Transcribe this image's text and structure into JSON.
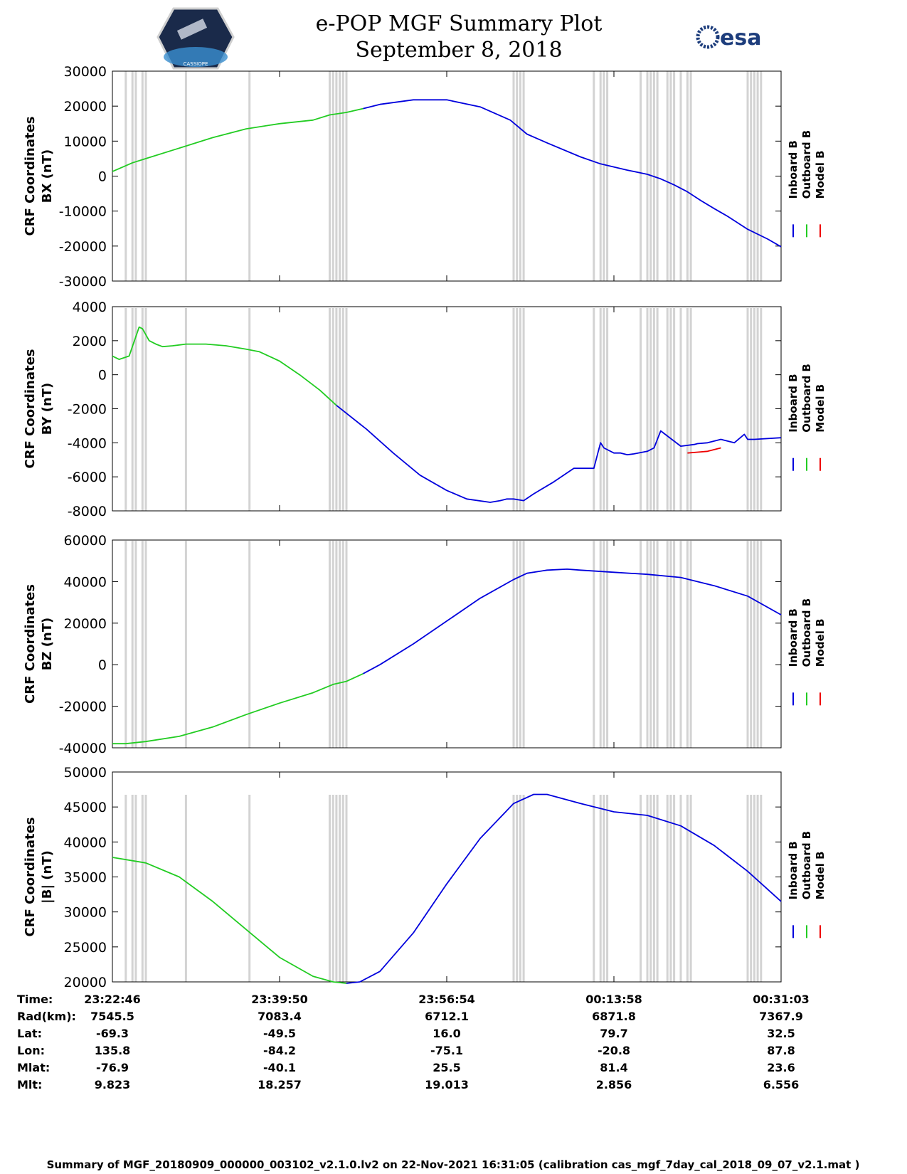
{
  "header": {
    "title": "e-POP MGF Summary Plot",
    "date": "September 8, 2018",
    "logo_left_text": "CASSIOPE",
    "logo_right_text": "esa"
  },
  "legend": {
    "labels": [
      "Inboard B",
      "Outboard B",
      "Model B"
    ],
    "colors": [
      "#0000dd",
      "#22cc22",
      "#ee0000"
    ]
  },
  "colors": {
    "inboard": "#0000dd",
    "outboard": "#22cc22",
    "model": "#ee0000",
    "gap": "#d3d3d3"
  },
  "chart_data": [
    {
      "type": "line",
      "ylabel": [
        "CRF Coordinates",
        "BX (nT)"
      ],
      "ylim": [
        -30000,
        30000
      ],
      "yticks": [
        "30000",
        "20000",
        "10000",
        "0",
        "-10000",
        "-20000",
        "-30000"
      ],
      "series": [
        {
          "name": "Outboard B",
          "color": "#22cc22",
          "x": [
            0.0,
            0.03,
            0.05,
            0.1,
            0.15,
            0.2,
            0.25,
            0.3,
            0.325,
            0.35,
            0.375
          ],
          "values": [
            1300,
            3800,
            5000,
            8000,
            11000,
            13500,
            15000,
            16000,
            17500,
            18200,
            19300
          ]
        },
        {
          "name": "Inboard B",
          "color": "#0000dd",
          "x": [
            0.375,
            0.4,
            0.45,
            0.5,
            0.55,
            0.595,
            0.62,
            0.65,
            0.7,
            0.73,
            0.77,
            0.8,
            0.82,
            0.84,
            0.86,
            0.88,
            0.9,
            0.92,
            0.95,
            0.98,
            1.0
          ],
          "values": [
            19300,
            20500,
            21800,
            21800,
            19800,
            16000,
            12000,
            9500,
            5500,
            3500,
            1700,
            500,
            -800,
            -2500,
            -4500,
            -7000,
            -9300,
            -11500,
            -15200,
            -18000,
            -20200
          ]
        }
      ],
      "gap_positions": [
        0.02,
        0.03,
        0.035,
        0.045,
        0.05,
        0.11,
        0.205,
        0.325,
        0.33,
        0.335,
        0.34,
        0.345,
        0.35,
        0.6,
        0.605,
        0.61,
        0.615,
        0.72,
        0.73,
        0.735,
        0.74,
        0.79,
        0.8,
        0.805,
        0.81,
        0.815,
        0.83,
        0.835,
        0.84,
        0.85,
        0.86,
        0.865,
        0.95,
        0.955,
        0.96,
        0.965,
        0.97
      ]
    },
    {
      "type": "line",
      "ylabel": [
        "CRF Coordinates",
        "BY (nT)"
      ],
      "ylim": [
        -8000,
        4000
      ],
      "yticks": [
        "4000",
        "2000",
        "0",
        "-2000",
        "-4000",
        "-6000",
        "-8000"
      ],
      "series": [
        {
          "name": "Model B",
          "color": "#ee0000",
          "x": [
            0.86,
            0.875,
            0.89,
            0.9,
            0.91
          ],
          "values": [
            -4600,
            -4550,
            -4500,
            -4400,
            -4300
          ]
        },
        {
          "name": "Outboard B",
          "color": "#22cc22",
          "x": [
            0.0,
            0.01,
            0.025,
            0.04,
            0.045,
            0.055,
            0.065,
            0.075,
            0.09,
            0.11,
            0.14,
            0.17,
            0.2,
            0.22,
            0.25,
            0.28,
            0.31,
            0.335
          ],
          "values": [
            1100,
            900,
            1100,
            2800,
            2700,
            2000,
            1800,
            1650,
            1700,
            1800,
            1800,
            1700,
            1500,
            1350,
            800,
            0,
            -900,
            -1800
          ]
        },
        {
          "name": "Inboard B",
          "color": "#0000dd",
          "x": [
            0.335,
            0.38,
            0.42,
            0.46,
            0.5,
            0.53,
            0.565,
            0.58,
            0.59,
            0.6,
            0.615,
            0.63,
            0.66,
            0.69,
            0.72,
            0.73,
            0.735,
            0.75,
            0.76,
            0.77,
            0.78,
            0.8,
            0.81,
            0.82,
            0.85,
            0.87,
            0.875,
            0.89,
            0.91,
            0.93,
            0.945,
            0.95,
            0.96,
            1.0
          ],
          "values": [
            -1800,
            -3200,
            -4600,
            -5900,
            -6800,
            -7300,
            -7500,
            -7400,
            -7300,
            -7300,
            -7400,
            -7000,
            -6300,
            -5500,
            -5500,
            -4000,
            -4300,
            -4600,
            -4600,
            -4700,
            -4650,
            -4500,
            -4300,
            -3300,
            -4200,
            -4100,
            -4050,
            -4000,
            -3800,
            -4000,
            -3500,
            -3800,
            -3800,
            -3700
          ]
        }
      ],
      "gap_positions": [
        0.02,
        0.03,
        0.035,
        0.045,
        0.05,
        0.11,
        0.205,
        0.325,
        0.33,
        0.335,
        0.34,
        0.345,
        0.35,
        0.6,
        0.605,
        0.61,
        0.615,
        0.72,
        0.73,
        0.735,
        0.74,
        0.79,
        0.8,
        0.805,
        0.81,
        0.815,
        0.83,
        0.835,
        0.84,
        0.85,
        0.86,
        0.865,
        0.95,
        0.955,
        0.96,
        0.965,
        0.97
      ]
    },
    {
      "type": "line",
      "ylabel": [
        "CRF Coordinates",
        "BZ (nT)"
      ],
      "ylim": [
        -40000,
        60000
      ],
      "yticks": [
        "60000",
        "40000",
        "20000",
        "0",
        "-20000",
        "-40000"
      ],
      "series": [
        {
          "name": "Outboard B",
          "color": "#22cc22",
          "x": [
            0.0,
            0.02,
            0.05,
            0.1,
            0.15,
            0.2,
            0.25,
            0.3,
            0.33,
            0.35,
            0.375
          ],
          "values": [
            -38000,
            -38000,
            -37000,
            -34500,
            -30000,
            -24000,
            -18500,
            -13500,
            -9500,
            -8000,
            -4300
          ]
        },
        {
          "name": "Inboard B",
          "color": "#0000dd",
          "x": [
            0.375,
            0.4,
            0.45,
            0.5,
            0.55,
            0.6,
            0.62,
            0.65,
            0.68,
            0.7,
            0.75,
            0.8,
            0.85,
            0.9,
            0.95,
            1.0
          ],
          "values": [
            -4300,
            0,
            10000,
            21000,
            32000,
            41000,
            44000,
            45500,
            46000,
            45500,
            44500,
            43500,
            42000,
            38000,
            33000,
            24000
          ]
        }
      ],
      "gap_positions": [
        0.02,
        0.03,
        0.035,
        0.045,
        0.05,
        0.11,
        0.205,
        0.325,
        0.33,
        0.335,
        0.34,
        0.345,
        0.35,
        0.6,
        0.605,
        0.61,
        0.615,
        0.72,
        0.73,
        0.735,
        0.74,
        0.79,
        0.8,
        0.805,
        0.81,
        0.815,
        0.83,
        0.835,
        0.84,
        0.85,
        0.86,
        0.865,
        0.95,
        0.955,
        0.96,
        0.965,
        0.97
      ]
    },
    {
      "type": "line",
      "ylabel": [
        "CRF Coordinates",
        "|B| (nT)"
      ],
      "ylim": [
        20000,
        50000
      ],
      "yticks": [
        "50000",
        "45000",
        "40000",
        "35000",
        "30000",
        "25000",
        "20000"
      ],
      "series": [
        {
          "name": "Outboard B",
          "color": "#22cc22",
          "x": [
            0.0,
            0.05,
            0.1,
            0.15,
            0.2,
            0.25,
            0.3,
            0.33,
            0.35
          ],
          "values": [
            37800,
            37000,
            35000,
            31500,
            27500,
            23500,
            20800,
            20000,
            19800
          ]
        },
        {
          "name": "Inboard B",
          "color": "#0000dd",
          "x": [
            0.35,
            0.37,
            0.4,
            0.45,
            0.5,
            0.55,
            0.6,
            0.63,
            0.65,
            0.7,
            0.75,
            0.8,
            0.85,
            0.9,
            0.95,
            1.0
          ],
          "values": [
            19800,
            20000,
            21500,
            27000,
            34000,
            40500,
            45500,
            46800,
            46800,
            45500,
            44300,
            43800,
            42300,
            39500,
            35800,
            31500
          ]
        }
      ],
      "gap_positions": [
        0.02,
        0.03,
        0.035,
        0.045,
        0.05,
        0.11,
        0.205,
        0.325,
        0.33,
        0.335,
        0.34,
        0.345,
        0.35,
        0.6,
        0.605,
        0.61,
        0.615,
        0.72,
        0.73,
        0.735,
        0.74,
        0.79,
        0.8,
        0.805,
        0.81,
        0.815,
        0.83,
        0.835,
        0.84,
        0.85,
        0.86,
        0.865,
        0.95,
        0.955,
        0.96,
        0.965,
        0.97
      ]
    }
  ],
  "ephemeris": {
    "row_labels": [
      "Time:",
      "Rad(km):",
      "Lat:",
      "Lon:",
      "Mlat:",
      "Mlt:"
    ],
    "columns": [
      [
        "23:22:46",
        "7545.5",
        "-69.3",
        "135.8",
        "-76.9",
        "9.823"
      ],
      [
        "23:39:50",
        "7083.4",
        "-49.5",
        "-84.2",
        "-40.1",
        "18.257"
      ],
      [
        "23:56:54",
        "6712.1",
        "16.0",
        "-75.1",
        "25.5",
        "19.013"
      ],
      [
        "00:13:58",
        "6871.8",
        "79.7",
        "-20.8",
        "81.4",
        "2.856"
      ],
      [
        "00:31:03",
        "7367.9",
        "32.5",
        "87.8",
        "23.6",
        "6.556"
      ]
    ]
  },
  "footer": "Summary of MGF_20180909_000000_003102_v2.1.0.lv2 on 22-Nov-2021 16:31:05 (calibration cas_mgf_7day_cal_2018_09_07_v2.1.mat )"
}
